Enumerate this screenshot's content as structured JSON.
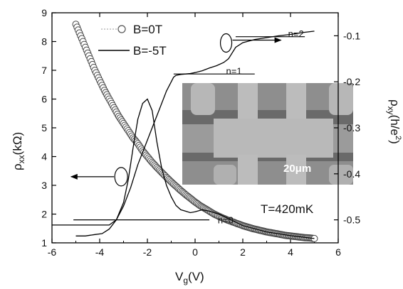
{
  "chart_data": {
    "type": "line",
    "xlabel_base": "V",
    "xlabel_sub": "g",
    "xlabel_unit": "(V)",
    "xlim": [
      -6,
      6
    ],
    "x_ticks": [
      -6,
      -4,
      -2,
      0,
      2,
      4,
      6
    ],
    "x_tick_labels": [
      "-6",
      "-4",
      "-2",
      "0",
      "2",
      "4",
      "6"
    ],
    "ylabel_left_base": "ρ",
    "ylabel_left_sub": "xx",
    "ylabel_left_unit": "(kΩ)",
    "ylim_left": [
      1,
      9
    ],
    "y_left_ticks": [
      1,
      2,
      3,
      4,
      5,
      6,
      7,
      8,
      9
    ],
    "y_left_tick_labels": [
      "1",
      "2",
      "3",
      "4",
      "5",
      "6",
      "7",
      "8",
      "9"
    ],
    "ylabel_right_base": "ρ",
    "ylabel_right_sub": "xy",
    "ylabel_right_unit_pre": "(h/e",
    "ylabel_right_unit_sup": "2",
    "ylabel_right_unit_post": ")",
    "ylim_right": [
      -0.55,
      -0.05
    ],
    "y_right_ticks": [
      -0.5,
      -0.4,
      -0.3,
      -0.2,
      -0.1
    ],
    "y_right_tick_labels": [
      "-0.5",
      "-0.4",
      "-0.3",
      "-0.2",
      "-0.1"
    ],
    "legend": {
      "placement": "top-left",
      "entries": [
        {
          "label": "B=0T",
          "style": "open-circles"
        },
        {
          "label": "B=-5T",
          "style": "line"
        }
      ]
    },
    "series": [
      {
        "name": "B=0T",
        "axis": "left",
        "marker": "open-circle",
        "x": [
          -5.0,
          -4.8,
          -4.6,
          -4.4,
          -4.2,
          -4.0,
          -3.8,
          -3.6,
          -3.4,
          -3.2,
          -3.0,
          -2.8,
          -2.6,
          -2.4,
          -2.2,
          -2.0,
          -1.8,
          -1.6,
          -1.4,
          -1.2,
          -1.0,
          -0.8,
          -0.6,
          -0.4,
          -0.2,
          0.0,
          0.2,
          0.4,
          0.6,
          0.8,
          1.0,
          1.2,
          1.4,
          1.6,
          1.8,
          2.0,
          2.2,
          2.4,
          2.6,
          2.8,
          3.0,
          3.2,
          3.4,
          3.6,
          3.8,
          4.0,
          4.2,
          4.4,
          4.6,
          4.8,
          5.0
        ],
        "y": [
          8.6,
          8.2,
          7.8,
          7.4,
          7.0,
          6.65,
          6.3,
          6.0,
          5.7,
          5.4,
          5.15,
          4.9,
          4.65,
          4.45,
          4.2,
          4.0,
          3.8,
          3.62,
          3.45,
          3.28,
          3.12,
          2.97,
          2.82,
          2.68,
          2.55,
          2.42,
          2.3,
          2.2,
          2.1,
          2.0,
          1.92,
          1.85,
          1.78,
          1.72,
          1.66,
          1.6,
          1.55,
          1.5,
          1.46,
          1.42,
          1.38,
          1.35,
          1.32,
          1.29,
          1.26,
          1.24,
          1.22,
          1.2,
          1.18,
          1.17,
          1.15
        ]
      },
      {
        "name": "B=-5T ρxx",
        "axis": "left",
        "marker": "line",
        "x": [
          -6.0,
          -4.0,
          -3.6,
          -3.3,
          -3.0,
          -2.8,
          -2.6,
          -2.4,
          -2.2,
          -2.0,
          -1.8,
          -1.6,
          -1.4,
          -1.2,
          -1.0,
          -0.8,
          -0.6,
          -0.4,
          -0.2,
          0.0,
          0.3,
          0.6,
          1.0,
          1.5,
          2.0,
          3.0,
          4.0,
          5.0
        ],
        "y": [
          1.62,
          1.62,
          1.62,
          1.8,
          2.4,
          3.2,
          4.3,
          5.3,
          5.85,
          6.0,
          5.6,
          4.5,
          3.6,
          3.0,
          2.6,
          2.3,
          2.15,
          2.1,
          2.05,
          2.08,
          2.15,
          2.1,
          2.0,
          1.8,
          1.6,
          1.38,
          1.25,
          1.15
        ]
      },
      {
        "name": "B=-5T ρxy",
        "axis": "right",
        "marker": "line",
        "x": [
          -5.0,
          -4.6,
          -4.2,
          -3.9,
          -3.6,
          -3.3,
          -3.0,
          -2.7,
          -2.4,
          -2.1,
          -1.8,
          -1.5,
          -1.2,
          -1.0,
          -0.9,
          -0.8,
          -0.6,
          -0.4,
          -0.2,
          0.0,
          0.3,
          0.6,
          0.9,
          1.2,
          1.4,
          1.7,
          2.0,
          2.5,
          3.0,
          3.5,
          4.0,
          4.5,
          5.0
        ],
        "y": [
          -0.535,
          -0.535,
          -0.532,
          -0.53,
          -0.52,
          -0.5,
          -0.47,
          -0.43,
          -0.38,
          -0.34,
          -0.3,
          -0.26,
          -0.22,
          -0.2,
          -0.19,
          -0.186,
          -0.184,
          -0.183,
          -0.182,
          -0.18,
          -0.176,
          -0.17,
          -0.165,
          -0.158,
          -0.15,
          -0.125,
          -0.115,
          -0.108,
          -0.104,
          -0.1,
          -0.097,
          -0.093,
          -0.09
        ]
      }
    ],
    "annotations": {
      "plateaus": [
        {
          "label": "n=2",
          "x1": 1.7,
          "x2": 4.6,
          "y": -0.102,
          "lx": 3.9,
          "ly": -0.095
        },
        {
          "label": "n=1",
          "x1": -0.9,
          "x2": 2.5,
          "y": -0.183,
          "lx": 1.3,
          "ly": -0.176
        },
        {
          "label": "n=0",
          "x1": -5.1,
          "x2": 0.6,
          "y": -0.5,
          "lx": 0.95,
          "ly": -0.5
        }
      ],
      "temperature": "T=420mK",
      "scale_bar": "20μm",
      "left_arrow_ellipse": {
        "x": -3.1,
        "y": 3.3
      },
      "right_arrow_ellipse": {
        "x": 1.3,
        "y": 7.95
      }
    }
  }
}
